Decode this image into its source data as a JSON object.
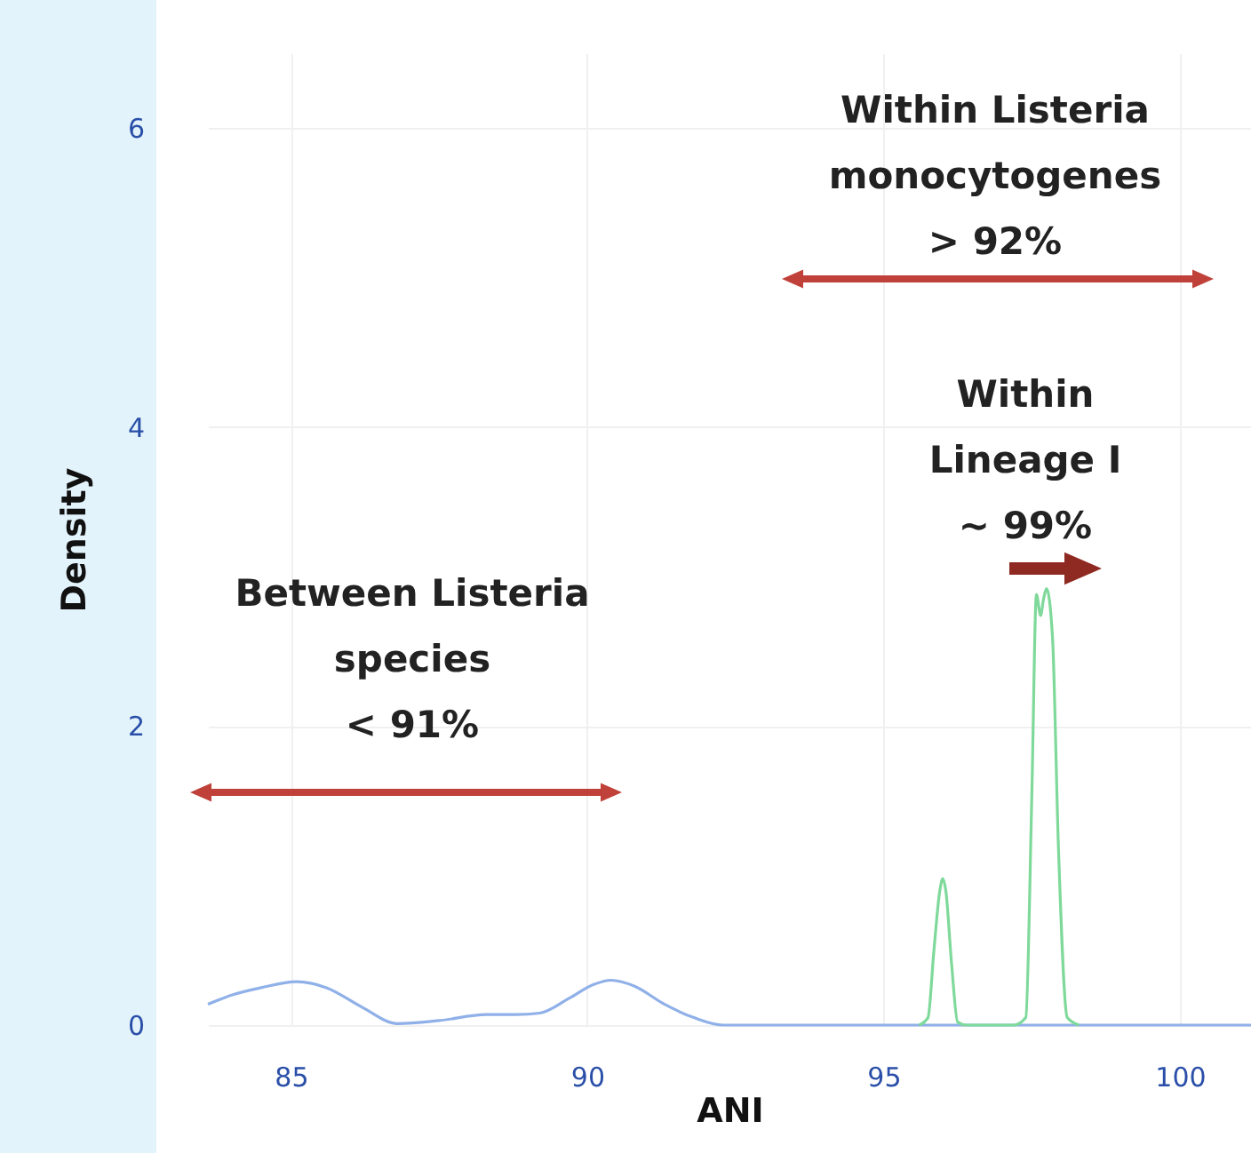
{
  "chart_data": {
    "type": "line",
    "xlabel": "ANI",
    "ylabel": "Density",
    "xlim": [
      83.6,
      101.2
    ],
    "xticks": [
      85,
      90,
      95,
      100
    ],
    "ylim": [
      0,
      6.5
    ],
    "yticks": [
      0,
      2,
      4,
      6
    ],
    "grid": true,
    "series": [
      {
        "color": "#8fb0e8",
        "x": [
          83.6,
          84.0,
          84.5,
          85.1,
          85.6,
          86.2,
          86.8,
          87.5,
          88.3,
          88.8,
          89.2,
          89.7,
          90.1,
          90.4,
          90.8,
          91.3,
          91.8,
          92.3,
          93,
          95,
          97,
          99,
          101.2
        ],
        "values": [
          0.14,
          0.2,
          0.25,
          0.29,
          0.25,
          0.12,
          0.01,
          0.03,
          0.07,
          0.07,
          0.08,
          0.18,
          0.27,
          0.3,
          0.26,
          0.14,
          0.05,
          0.0,
          0,
          0,
          0,
          0,
          0
        ]
      },
      {
        "color": "#7ed99a",
        "x": [
          95.6,
          95.75,
          95.85,
          95.95,
          96.0,
          96.05,
          96.15,
          96.25,
          96.4,
          97.2,
          97.4,
          97.5,
          97.58,
          97.65,
          97.7,
          97.75,
          97.85,
          97.95,
          98.1,
          98.3
        ],
        "values": [
          0,
          0.05,
          0.5,
          0.9,
          0.98,
          0.9,
          0.4,
          0.02,
          0,
          0,
          0.05,
          1.5,
          2.88,
          2.74,
          2.85,
          2.92,
          2.6,
          1.2,
          0.05,
          0
        ]
      }
    ],
    "annotations": [
      "Between Listeria\nspecies\n< 91%",
      "Within Listeria\nmonocytogenes\n> 92%",
      "Within\nLineage I\n~ 99%"
    ]
  }
}
